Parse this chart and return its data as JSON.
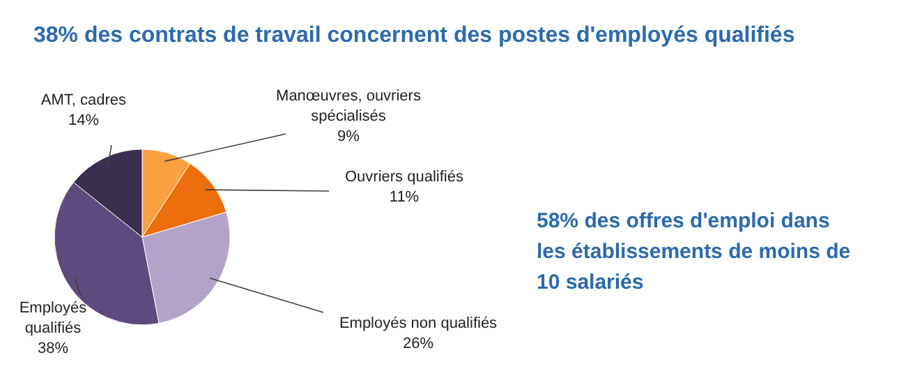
{
  "chart_data": {
    "type": "pie",
    "title": "38% des contrats de travail concernent des postes d'employés qualifiés",
    "categories": [
      "Manœuvres, ouvriers spécialisés",
      "Ouvriers qualifiés",
      "Employés non qualifiés",
      "Employés qualifiés",
      "AMT, cadres"
    ],
    "values": [
      9,
      11,
      26,
      38,
      14
    ],
    "value_labels": [
      "9%",
      "11%",
      "26%",
      "38%",
      "14%"
    ],
    "colors": [
      "#f9a040",
      "#ec6e0c",
      "#b4a3c9",
      "#5e4a7e",
      "#3b2f4f"
    ],
    "annotations": [
      "58% des offres d'emploi dans les établissements de moins de 10 salariés"
    ]
  }
}
